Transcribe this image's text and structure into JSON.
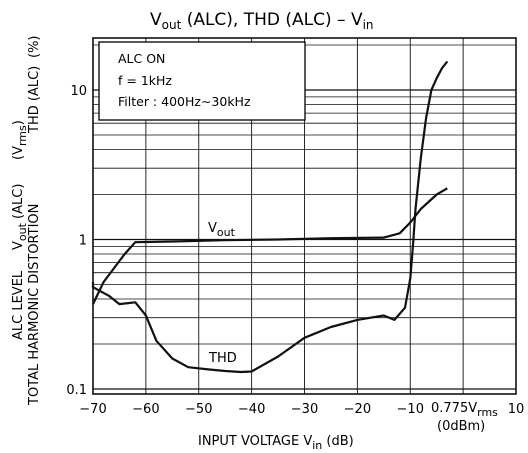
{
  "chart_data": {
    "type": "line",
    "title_parts": {
      "v1": "V",
      "v1_sub": "out",
      "mid": " (ALC),  THD (ALC)  –  V",
      "v2_sub": "in"
    },
    "title": "Vout (ALC), THD (ALC) – Vin",
    "x_axis": {
      "label_prefix": "INPUT VOLTAGE   V",
      "label_sub": "in",
      "label_suffix": "   (dB)",
      "range": [
        -70,
        10
      ],
      "ticks": [
        {
          "v": -70,
          "label": "−70"
        },
        {
          "v": -60,
          "label": "−60"
        },
        {
          "v": -50,
          "label": "−50"
        },
        {
          "v": -40,
          "label": "−40"
        },
        {
          "v": -30,
          "label": "−30"
        },
        {
          "v": -20,
          "label": "−20"
        },
        {
          "v": -10,
          "label": "−10"
        },
        {
          "v": 10,
          "label": "10"
        }
      ],
      "ref_label": "0.775V",
      "ref_sub": "rms",
      "ref_label2": "(0dBm)"
    },
    "y_axis": {
      "scale": "log",
      "range": [
        0.1,
        20
      ],
      "ticks": [
        {
          "v": 0.1,
          "label": "0.1"
        },
        {
          "v": 1,
          "label": "1"
        },
        {
          "v": 10,
          "label": "10"
        }
      ],
      "left_label_line1": "TOTAL HARMONIC DISTORTION",
      "left_label_line2": "ALC LEVEL",
      "right_label_a": "V",
      "right_label_a_sub": "out",
      "right_label_a_suffix": " (ALC)",
      "right_label_b": "THD (ALC)",
      "unit_a_prefix": "(V",
      "unit_a_sub": "rms",
      "unit_a_suffix": ")",
      "unit_b": "(%)"
    },
    "annotation_box": {
      "lines": [
        "ALC ON",
        "f = 1kHz",
        "Filter : 400Hz∼30kHz"
      ]
    },
    "series": [
      {
        "name": "Vout",
        "label": "V",
        "label_sub": "out",
        "x": [
          -72,
          -68,
          -64,
          -62,
          -55,
          -45,
          -35,
          -25,
          -15,
          -12,
          -10,
          -8,
          -5,
          -3
        ],
        "y": [
          0.37,
          0.52,
          0.8,
          0.96,
          0.97,
          0.99,
          1.0,
          1.02,
          1.03,
          1.1,
          1.3,
          1.6,
          2.0,
          2.2
        ]
      },
      {
        "name": "THD",
        "label": "THD",
        "x": [
          -72,
          -70,
          -67,
          -65,
          -62,
          -60,
          -58,
          -55,
          -52,
          -48,
          -45,
          -42,
          -40,
          -35,
          -30,
          -25,
          -20,
          -15,
          -13,
          -11,
          -10,
          -9.5,
          -9,
          -8,
          -7,
          -6,
          -5,
          -4,
          -3
        ],
        "y": [
          0.52,
          0.48,
          0.42,
          0.37,
          0.38,
          0.31,
          0.21,
          0.16,
          0.14,
          0.135,
          0.132,
          0.13,
          0.131,
          0.165,
          0.22,
          0.26,
          0.29,
          0.31,
          0.29,
          0.35,
          0.55,
          0.9,
          1.6,
          3.5,
          6.5,
          10,
          12,
          14,
          15.5
        ]
      }
    ],
    "grid": true
  }
}
